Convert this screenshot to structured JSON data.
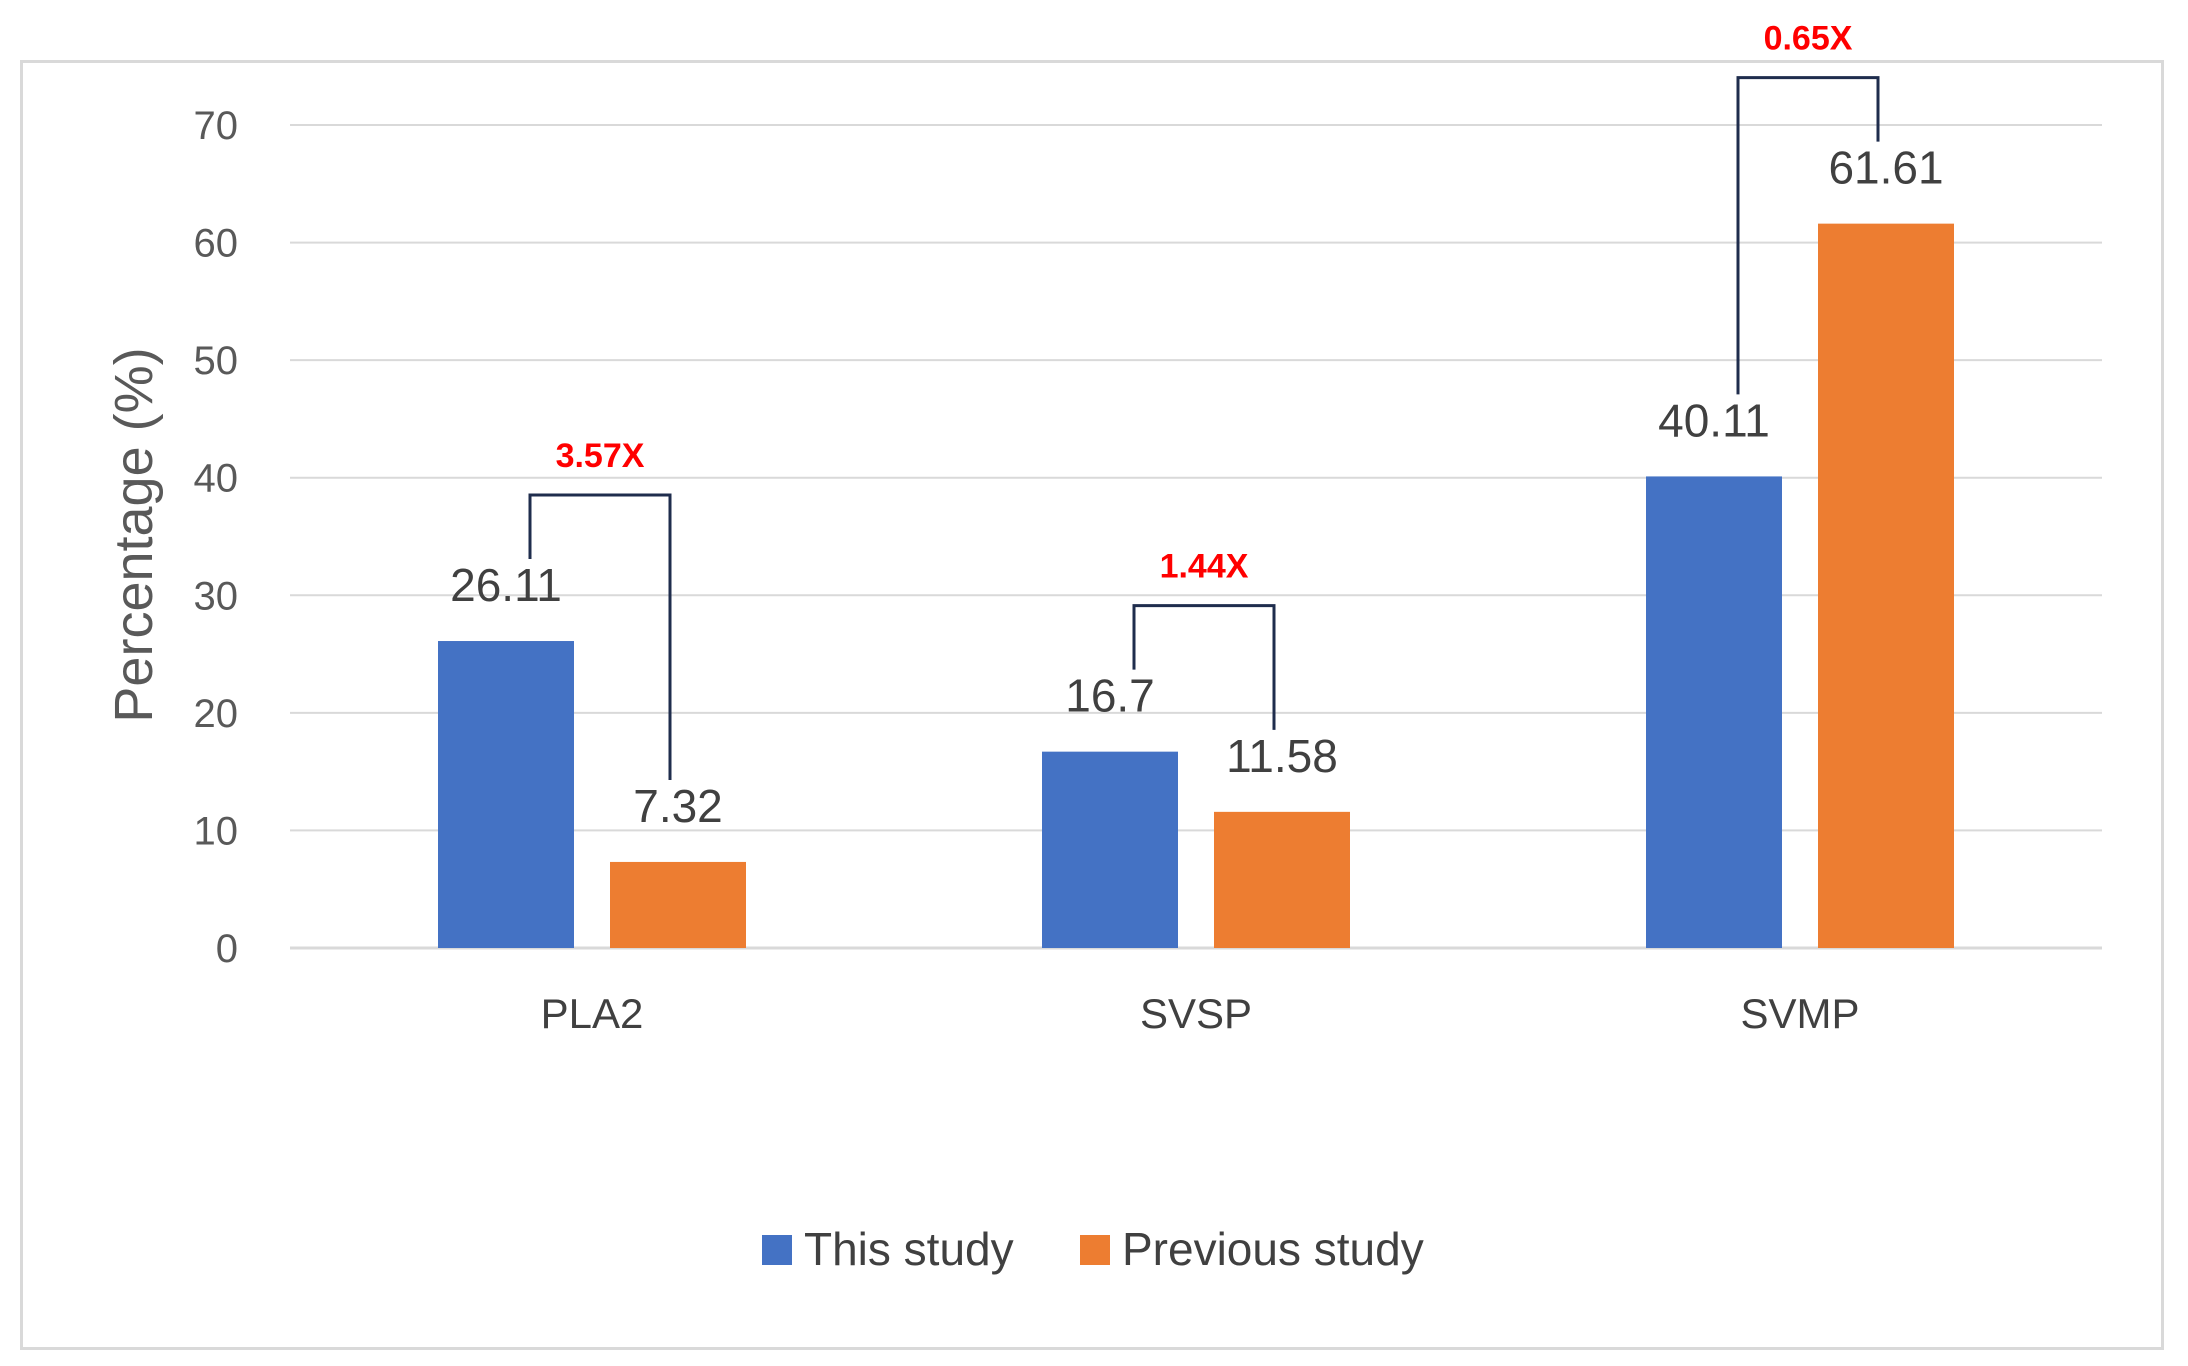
{
  "chart_data": {
    "type": "bar",
    "title": "",
    "xlabel": "",
    "ylabel": "Percentage (%)",
    "ylim": [
      0,
      70
    ],
    "yticks": [
      0,
      10,
      20,
      30,
      40,
      50,
      60,
      70
    ],
    "grid": true,
    "legend_position": "bottom",
    "categories": [
      "PLA2",
      "SVSP",
      "SVMP"
    ],
    "series": [
      {
        "name": "This study",
        "color": "#4472c4",
        "values": [
          26.11,
          16.7,
          40.11
        ],
        "labels": [
          "26.11",
          "16.7",
          "40.11"
        ]
      },
      {
        "name": "Previous study",
        "color": "#ed7d31",
        "values": [
          7.32,
          11.58,
          61.61
        ],
        "labels": [
          "7.32",
          "11.58",
          "61.61"
        ]
      }
    ],
    "annotations": [
      {
        "category": "PLA2",
        "text": "3.57X",
        "color": "#ff0000"
      },
      {
        "category": "SVSP",
        "text": "1.44X",
        "color": "#ff0000"
      },
      {
        "category": "SVMP",
        "text": "0.65X",
        "color": "#ff0000"
      }
    ],
    "bracket_color": "#1f2d4d",
    "grid_color": "#d9d9d9"
  }
}
